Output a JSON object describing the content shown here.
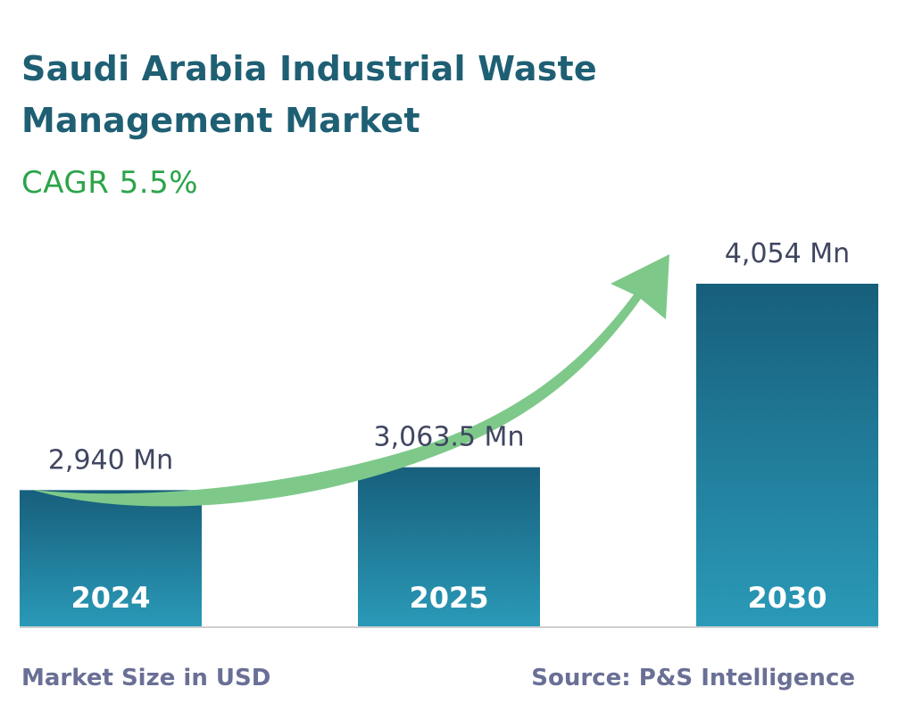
{
  "header": {
    "title": "Saudi Arabia Industrial Waste Management Market",
    "cagr": "CAGR 5.5%"
  },
  "footer": {
    "left": "Market Size in USD",
    "right": "Source: P&S Intelligence"
  },
  "colors": {
    "title": "#1f5f74",
    "cagr": "#2ca44a",
    "bar_top": "#175f7c",
    "bar_bottom": "#2a9ab8",
    "arrow": "#7ec98a",
    "footer": "#6a6f96",
    "baseline": "#cfcfcf"
  },
  "chart_data": {
    "type": "bar",
    "categories": [
      "2024",
      "2025",
      "2030"
    ],
    "values": [
      2940,
      3063.5,
      4054
    ],
    "data_labels": [
      "2,940 Mn",
      "3,063.5 Mn",
      "4,054 Mn"
    ],
    "title": "Saudi Arabia Industrial Waste Management Market",
    "subtitle": "CAGR 5.5%",
    "unit": "Mn",
    "xlabel": "",
    "ylabel": "",
    "grid": false,
    "legend": "none",
    "annotations": [
      "upward trend arrow"
    ]
  }
}
